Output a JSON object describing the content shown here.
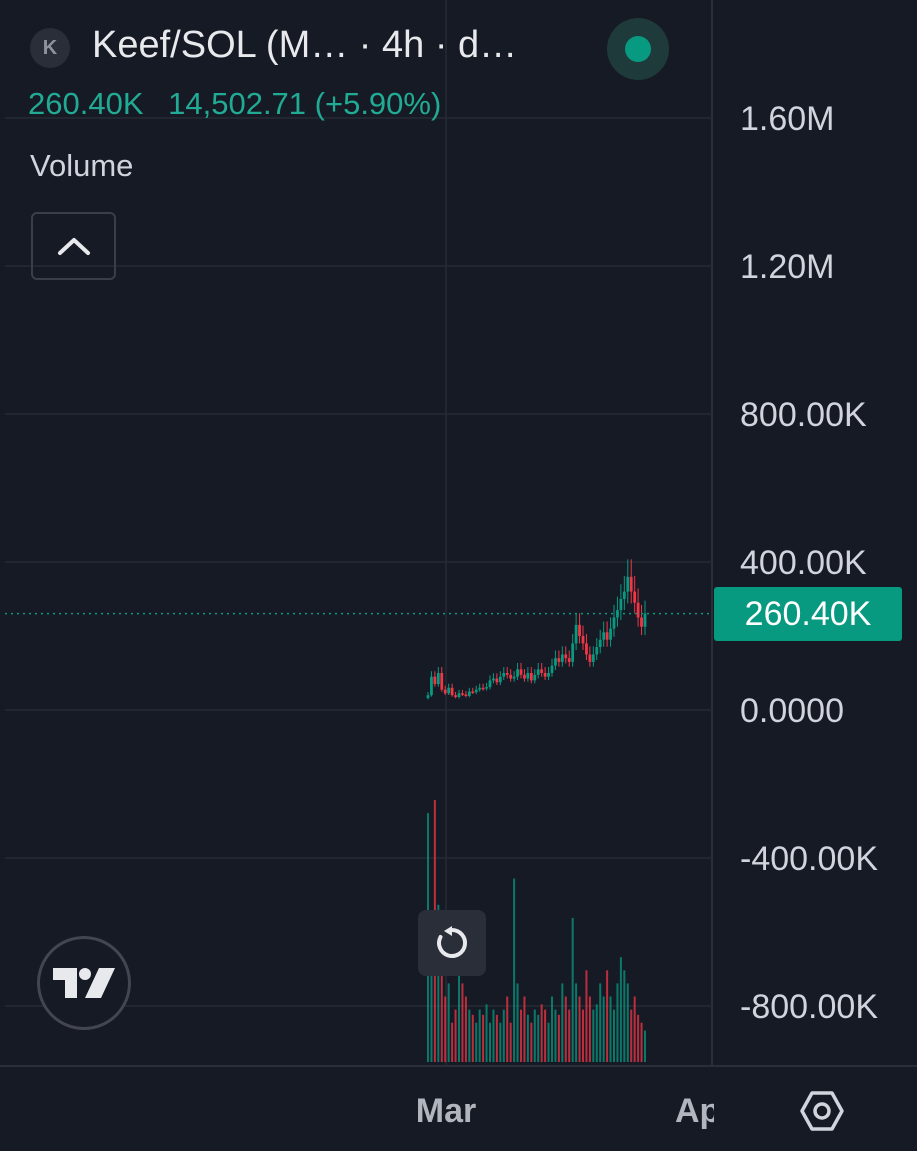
{
  "header": {
    "avatar_letter": "K",
    "symbol_title": "Keef/SOL (M… · 4h · d…",
    "status": "live",
    "status_color": "#089981",
    "last_value": "260.40K",
    "change": "14,502.71 (+5.90%)",
    "indicator_label": "Volume"
  },
  "price_axis_label": "260.40K",
  "colors": {
    "up": "#089981",
    "down": "#f23645",
    "background": "#161a25",
    "grid": "#262a35",
    "last_price_line": "#089981"
  },
  "icons": {
    "collapse": "chevron-up-icon",
    "reset": "reset-icon",
    "logo": "tradingview-logo",
    "settings": "settings-icon"
  },
  "chart_data": {
    "type": "candlestick",
    "timeframe": "4h",
    "x_axis": {
      "ticks": [
        "Mar",
        "Ap"
      ]
    },
    "y_axis": {
      "ticks": [
        "1.60M",
        "1.20M",
        "800.00K",
        "400.00K",
        "0.0000",
        "-400.00K",
        "-800.00K"
      ],
      "ylim": [
        -950000,
        1650000
      ]
    },
    "last_value": 260400,
    "price_series": [
      40000,
      90000,
      70000,
      100000,
      55000,
      45000,
      60000,
      40000,
      35000,
      45000,
      42000,
      38000,
      50000,
      48000,
      55000,
      60000,
      58000,
      62000,
      80000,
      85000,
      75000,
      90000,
      100000,
      95000,
      85000,
      90000,
      110000,
      95000,
      85000,
      100000,
      80000,
      95000,
      110000,
      100000,
      90000,
      100000,
      120000,
      140000,
      130000,
      150000,
      140000,
      130000,
      180000,
      230000,
      200000,
      180000,
      150000,
      130000,
      150000,
      170000,
      190000,
      210000,
      190000,
      220000,
      250000,
      270000,
      300000,
      320000,
      360000,
      320000,
      290000,
      250000,
      225000,
      260400
    ],
    "volume_series": [
      95,
      40,
      100,
      60,
      35,
      25,
      30,
      15,
      20,
      35,
      30,
      25,
      20,
      18,
      15,
      20,
      18,
      22,
      15,
      20,
      18,
      15,
      20,
      25,
      15,
      70,
      30,
      20,
      25,
      18,
      15,
      20,
      18,
      22,
      20,
      15,
      25,
      20,
      18,
      30,
      25,
      20,
      55,
      30,
      25,
      20,
      35,
      25,
      20,
      22,
      30,
      25,
      35,
      25,
      20,
      30,
      40,
      35,
      30,
      20,
      25,
      18,
      15,
      12
    ]
  }
}
